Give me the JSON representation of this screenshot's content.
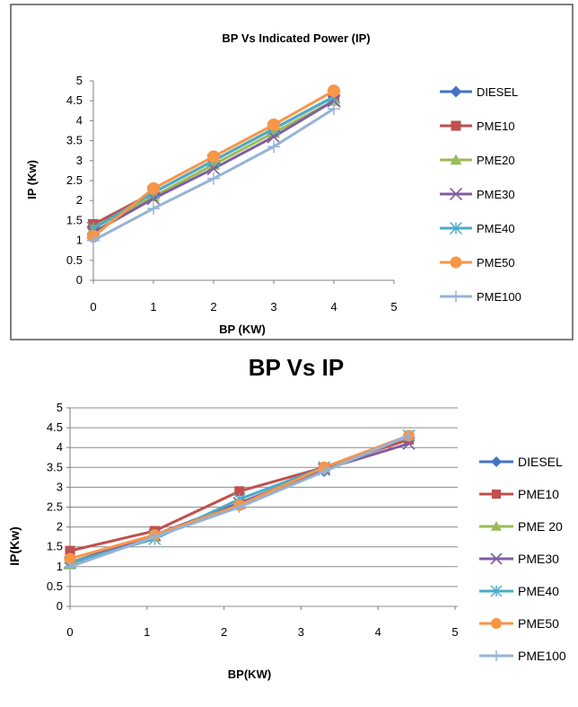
{
  "chart_data": [
    {
      "type": "line",
      "title": "BP Vs Indicated Power (IP)",
      "xlabel": "BP (KW)",
      "ylabel": "IP (Kw)",
      "xlim": [
        0,
        5
      ],
      "ylim": [
        0,
        5
      ],
      "x_ticks": [
        "0",
        "1",
        "2",
        "3",
        "4",
        "5"
      ],
      "y_ticks": [
        "0",
        "0.5",
        "1",
        "1.5",
        "2",
        "2.5",
        "3",
        "3.5",
        "4",
        "4.5",
        "5"
      ],
      "grid": false,
      "legend_position": "right",
      "series": [
        {
          "name": "DIESEL",
          "color": "#4472C4",
          "marker": "diamond",
          "x": [
            0,
            1,
            2,
            3,
            4
          ],
          "y": [
            1.3,
            2.2,
            3.0,
            3.8,
            4.6
          ]
        },
        {
          "name": "PME10",
          "color": "#C0504D",
          "marker": "square",
          "x": [
            0,
            1,
            2,
            3,
            4
          ],
          "y": [
            1.4,
            2.2,
            3.0,
            3.8,
            4.6
          ]
        },
        {
          "name": "PME20",
          "color": "#9BBB59",
          "marker": "triangle",
          "x": [
            0,
            1,
            2,
            3,
            4
          ],
          "y": [
            1.3,
            2.1,
            2.9,
            3.7,
            4.5
          ]
        },
        {
          "name": "PME30",
          "color": "#7F5F9F",
          "marker": "x",
          "x": [
            0,
            1,
            2,
            3,
            4
          ],
          "y": [
            1.2,
            2.05,
            2.8,
            3.6,
            4.5
          ]
        },
        {
          "name": "PME40",
          "color": "#4BACC6",
          "marker": "star",
          "x": [
            0,
            1,
            2,
            3,
            4
          ],
          "y": [
            1.3,
            2.2,
            3.0,
            3.8,
            4.6
          ]
        },
        {
          "name": "PME50",
          "color": "#F79646",
          "marker": "circle",
          "x": [
            0,
            1,
            2,
            3,
            4
          ],
          "y": [
            1.1,
            2.3,
            3.1,
            3.9,
            4.75
          ]
        },
        {
          "name": "PME100",
          "color": "#95B3D7",
          "marker": "plus",
          "x": [
            0,
            1,
            2,
            3,
            4
          ],
          "y": [
            1.0,
            1.8,
            2.55,
            3.35,
            4.3
          ]
        }
      ]
    },
    {
      "type": "line",
      "title": "BP Vs IP",
      "xlabel": "BP(KW)",
      "ylabel": "IP(Kw)",
      "xlim": [
        0,
        5
      ],
      "ylim": [
        0,
        5
      ],
      "x_ticks": [
        "0",
        "1",
        "2",
        "3",
        "4",
        "5"
      ],
      "y_ticks": [
        "0",
        "0.5",
        "1",
        "1.5",
        "2",
        "2.5",
        "3",
        "3.5",
        "4",
        "4.5",
        "5"
      ],
      "grid": true,
      "legend_position": "right",
      "series": [
        {
          "name": "DIESEL",
          "color": "#4472C4",
          "marker": "diamond",
          "x": [
            0,
            1.1,
            2.2,
            3.3,
            4.4
          ],
          "y": [
            1.1,
            1.8,
            2.6,
            3.4,
            4.3
          ]
        },
        {
          "name": "PME10",
          "color": "#C0504D",
          "marker": "square",
          "x": [
            0,
            1.1,
            2.2,
            3.3,
            4.4
          ],
          "y": [
            1.4,
            1.9,
            2.9,
            3.5,
            4.2
          ]
        },
        {
          "name": "PME 20",
          "color": "#9BBB59",
          "marker": "triangle",
          "x": [
            0,
            1.1,
            2.2,
            3.3,
            4.4
          ],
          "y": [
            1.05,
            1.75,
            2.6,
            3.45,
            4.3
          ]
        },
        {
          "name": "PME30",
          "color": "#7F5F9F",
          "marker": "x",
          "x": [
            0,
            1.1,
            2.2,
            3.3,
            4.4
          ],
          "y": [
            1.1,
            1.8,
            2.6,
            3.45,
            4.1
          ]
        },
        {
          "name": "PME40",
          "color": "#4BACC6",
          "marker": "star",
          "x": [
            0,
            1.1,
            2.2,
            3.3,
            4.4
          ],
          "y": [
            1.1,
            1.7,
            2.7,
            3.5,
            4.3
          ]
        },
        {
          "name": "PME50",
          "color": "#F79646",
          "marker": "circle",
          "x": [
            0,
            1.1,
            2.2,
            3.3,
            4.4
          ],
          "y": [
            1.2,
            1.8,
            2.55,
            3.5,
            4.3
          ]
        },
        {
          "name": "PME100",
          "color": "#95B3D7",
          "marker": "plus",
          "x": [
            0,
            1.1,
            2.2,
            3.3,
            4.4
          ],
          "y": [
            1.0,
            1.75,
            2.5,
            3.4,
            4.3
          ]
        }
      ]
    }
  ]
}
